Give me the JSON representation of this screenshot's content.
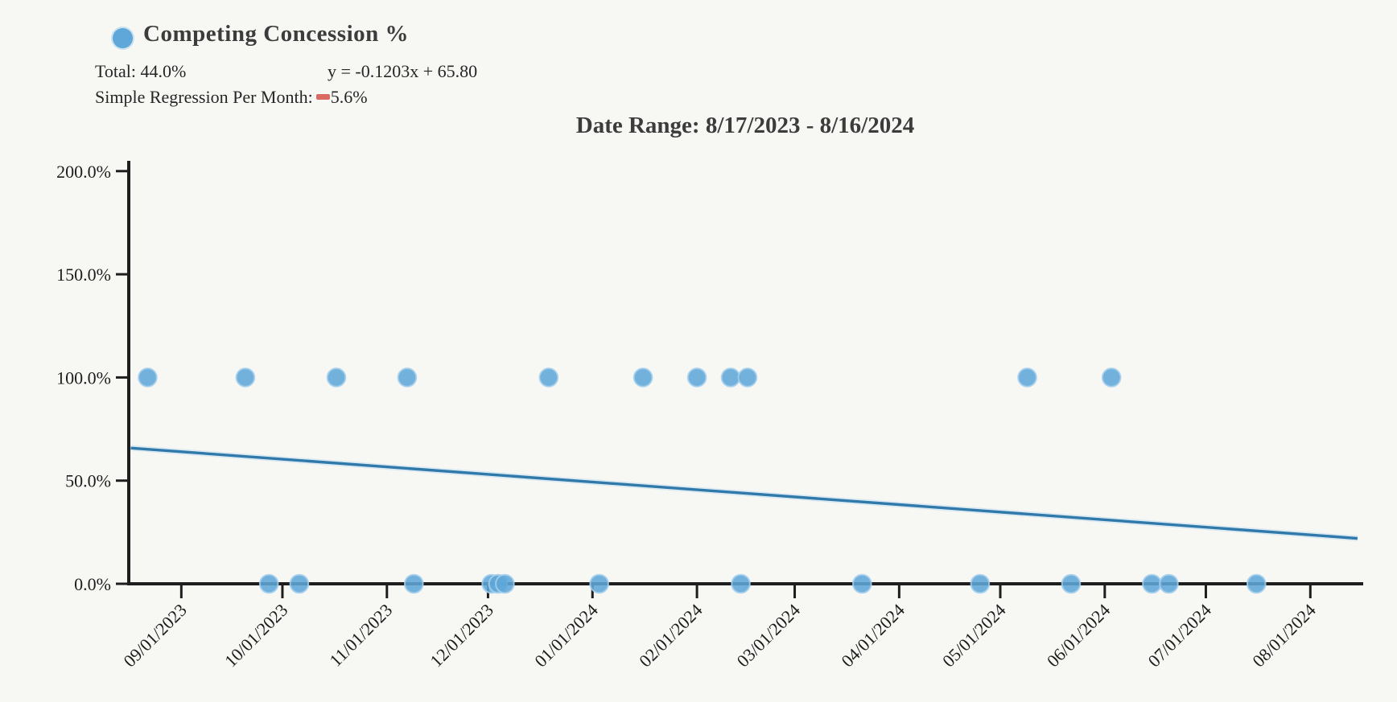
{
  "page": {
    "background": "#f7f7f4"
  },
  "legend": {
    "series_label": "Competing Concession %",
    "marker_color": "#5ea7d8",
    "total_label": "Total: 44.0%",
    "equation": "y = -0.1203x + 65.80",
    "regression_label": "Simple Regression Per Month:",
    "regression_value": "5.6%",
    "negative_indicator_color": "#dc6862"
  },
  "title": "Date Range: 8/17/2023 - 8/16/2024",
  "chart_data": {
    "type": "scatter",
    "title": "Date Range: 8/17/2023 - 8/16/2024",
    "x_axis": {
      "start_date": "8/17/2023",
      "end_date": "8/16/2024",
      "tick_labels": [
        "09/01/2023",
        "10/01/2023",
        "11/01/2023",
        "12/01/2023",
        "01/01/2024",
        "02/01/2024",
        "03/01/2024",
        "04/01/2024",
        "05/01/2024",
        "06/01/2024",
        "07/01/2024",
        "08/01/2024"
      ],
      "tick_days": [
        15,
        45,
        76,
        106,
        137,
        168,
        197,
        228,
        258,
        289,
        319,
        350
      ]
    },
    "y_axis": {
      "tick_labels": [
        "0.0%",
        "50.0%",
        "100.0%",
        "150.0%",
        "200.0%"
      ],
      "tick_values": [
        0,
        50,
        100,
        150,
        200
      ],
      "range": [
        0,
        200
      ],
      "grid": false
    },
    "series": [
      {
        "name": "Competing Concession %",
        "points": [
          {
            "date": "08/22/2023",
            "day": 5,
            "value": 100
          },
          {
            "date": "09/20/2023",
            "day": 34,
            "value": 100
          },
          {
            "date": "09/27/2023",
            "day": 41,
            "value": 0
          },
          {
            "date": "10/06/2023",
            "day": 50,
            "value": 0
          },
          {
            "date": "10/17/2023",
            "day": 61,
            "value": 100
          },
          {
            "date": "11/07/2023",
            "day": 82,
            "value": 100
          },
          {
            "date": "11/09/2023",
            "day": 84,
            "value": 0
          },
          {
            "date": "12/02/2023",
            "day": 107,
            "value": 0
          },
          {
            "date": "12/04/2023",
            "day": 109,
            "value": 0
          },
          {
            "date": "12/06/2023",
            "day": 111,
            "value": 0
          },
          {
            "date": "12/19/2023",
            "day": 124,
            "value": 100
          },
          {
            "date": "01/03/2024",
            "day": 139,
            "value": 0
          },
          {
            "date": "01/16/2024",
            "day": 152,
            "value": 100
          },
          {
            "date": "02/01/2024",
            "day": 168,
            "value": 100
          },
          {
            "date": "02/11/2024",
            "day": 178,
            "value": 100
          },
          {
            "date": "02/14/2024",
            "day": 181,
            "value": 0
          },
          {
            "date": "02/16/2024",
            "day": 183,
            "value": 100
          },
          {
            "date": "03/21/2024",
            "day": 217,
            "value": 0
          },
          {
            "date": "04/25/2024",
            "day": 252,
            "value": 0
          },
          {
            "date": "05/09/2024",
            "day": 266,
            "value": 100
          },
          {
            "date": "05/22/2024",
            "day": 279,
            "value": 0
          },
          {
            "date": "06/03/2024",
            "day": 291,
            "value": 100
          },
          {
            "date": "06/15/2024",
            "day": 303,
            "value": 0
          },
          {
            "date": "06/20/2024",
            "day": 308,
            "value": 0
          },
          {
            "date": "07/16/2024",
            "day": 334,
            "value": 0
          }
        ]
      }
    ],
    "regression": {
      "equation": "y = -0.1203x + 65.80",
      "intercept_pct": 65.8,
      "slope_pct_per_day": -0.1203,
      "x_domain_days": [
        0,
        364
      ]
    },
    "stats": {
      "total_pct": "44.0%",
      "per_month_pct": "-5.6%"
    },
    "colors": {
      "point": "#5ea7d8",
      "point_edge": "#a6cfec",
      "line": "#2f79ab",
      "line_halo": "#aed4ee",
      "axis": "#1e1e1e",
      "label": "#1d1d1d"
    },
    "legend_position": "top-left"
  }
}
